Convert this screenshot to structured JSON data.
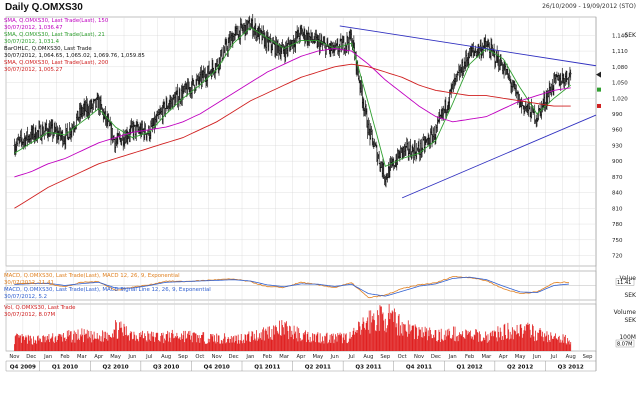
{
  "header": {
    "title": "Daily Q.OMXS30",
    "date_range": "26/10/2009 - 19/09/2012 (STO)"
  },
  "legend_price": [
    {
      "text": "SMA, Q.OMXS30, Last Trade(Last), 150",
      "color": "#c000c0"
    },
    {
      "text": "30/07/2012, 1,036.47",
      "color": "#c000c0"
    },
    {
      "text": "SMA, Q.OMXS30, Last Trade(Last), 21",
      "color": "#30a030"
    },
    {
      "text": "30/07/2012, 1,031.4",
      "color": "#30a030"
    },
    {
      "text": "BarOHLC, Q.OMXS30, Last Trade",
      "color": "#111111"
    },
    {
      "text": "30/07/2012, 1,064.65, 1,065.02, 1,069.76, 1,059.85",
      "color": "#111111"
    },
    {
      "text": "SMA, Q.OMXS30, Last Trade(Last), 200",
      "color": "#d02020"
    },
    {
      "text": "30/07/2012, 1,005.27",
      "color": "#d02020"
    }
  ],
  "legend_macd": [
    {
      "text": "MACD, Q.OMXS30, Last Trade(Last), MACD 12, 26, 9, Exponential",
      "color": "#e08020"
    },
    {
      "text": "30/07/2012, 11.41",
      "color": "#e08020"
    },
    {
      "text": "MACD, Q.OMXS30, Last Trade(Last), MACD Signal Line 12, 26, 9, Exponential",
      "color": "#3060d0"
    },
    {
      "text": "30/07/2012, 5.2",
      "color": "#3060d0"
    }
  ],
  "legend_volume": [
    {
      "text": "Vol, Q.OMXS30, Last Trade",
      "color": "#d02020"
    },
    {
      "text": "30/07/2012, 8.07M",
      "color": "#d02020"
    }
  ],
  "axis_units": {
    "price": "SEK",
    "macd_top": "Value",
    "macd_bottom": "SEK",
    "volume_top": "Volume",
    "volume_bottom": "SEK",
    "volume_tick": "100M",
    "macd_current": "11.41",
    "volume_current": "8.07M"
  },
  "colors": {
    "bars": "#111111",
    "sma21": "#30a030",
    "sma150": "#c000c0",
    "sma200": "#d02020",
    "trend": "#3030c0",
    "macd": "#e08020",
    "signal": "#3060d0",
    "volume": "#e02020",
    "grid": "#d8d8d8"
  },
  "chart_data": [
    {
      "type": "line",
      "title": "Daily Q.OMXS30",
      "yunit": "SEK",
      "ylim": [
        700,
        1175
      ],
      "yticks": [
        1140,
        1110,
        1080,
        1050,
        1020,
        990,
        960,
        930,
        900,
        870,
        840,
        810,
        780,
        750,
        720
      ],
      "month_labels": [
        "Nov",
        "Dec",
        "Jan",
        "Feb",
        "Mar",
        "Apr",
        "May",
        "Jun",
        "Jul",
        "Aug",
        "Sep",
        "Oct",
        "Nov",
        "Dec",
        "Jan",
        "Feb",
        "Mar",
        "Apr",
        "May",
        "Jun",
        "Jul",
        "Aug",
        "Sep",
        "Oct",
        "Nov",
        "Dec",
        "Jan",
        "Feb",
        "Mar",
        "Apr",
        "May",
        "Jun",
        "Jul",
        "Aug",
        "Sep"
      ],
      "quarter_labels": [
        "Q4 2009",
        "Q1 2010",
        "Q2 2010",
        "Q3 2010",
        "Q4 2010",
        "Q1 2011",
        "Q2 2011",
        "Q3 2011",
        "Q4 2011",
        "Q1 2012",
        "Q2 2012",
        "Q3 2012"
      ],
      "x_first_month_index": 0,
      "price_anchors_month_close": [
        [
          0,
          930
        ],
        [
          1,
          950
        ],
        [
          2,
          960
        ],
        [
          3,
          945
        ],
        [
          4,
          995
        ],
        [
          5,
          1010
        ],
        [
          6,
          935
        ],
        [
          7,
          960
        ],
        [
          8,
          955
        ],
        [
          9,
          1005
        ],
        [
          10,
          1030
        ],
        [
          11,
          1055
        ],
        [
          12,
          1085
        ],
        [
          13,
          1140
        ],
        [
          14,
          1160
        ],
        [
          15,
          1125
        ],
        [
          16,
          1110
        ],
        [
          17,
          1145
        ],
        [
          18,
          1125
        ],
        [
          19,
          1110
        ],
        [
          20,
          1135
        ],
        [
          21,
          960
        ],
        [
          22,
          870
        ],
        [
          23,
          920
        ],
        [
          24,
          920
        ],
        [
          25,
          955
        ],
        [
          26,
          1040
        ],
        [
          27,
          1105
        ],
        [
          28,
          1120
        ],
        [
          29,
          1080
        ],
        [
          30,
          1010
        ],
        [
          31,
          985
        ],
        [
          32,
          1050
        ],
        [
          33,
          1065
        ]
      ],
      "series": [
        {
          "name": "SMA, Q.OMXS30, Last Trade(Last), 21",
          "color": "#30a030",
          "values_by_month": [
            915,
            935,
            955,
            950,
            975,
            1000,
            965,
            945,
            955,
            990,
            1020,
            1045,
            1075,
            1125,
            1155,
            1135,
            1115,
            1130,
            1130,
            1115,
            1125,
            1010,
            890,
            905,
            915,
            940,
            1010,
            1085,
            1115,
            1095,
            1040,
            990,
            1020,
            1045
          ]
        },
        {
          "name": "SMA, Q.OMXS30, Last Trade(Last), 150",
          "color": "#c000c0",
          "values_by_month": [
            870,
            880,
            895,
            905,
            920,
            935,
            945,
            955,
            960,
            965,
            975,
            990,
            1010,
            1030,
            1050,
            1070,
            1085,
            1100,
            1110,
            1115,
            1110,
            1085,
            1055,
            1030,
            1005,
            985,
            975,
            980,
            985,
            1000,
            1015,
            1025,
            1035,
            1040
          ]
        },
        {
          "name": "SMA, Q.OMXS30, Last Trade(Last), 200",
          "color": "#d02020",
          "values_by_month": [
            810,
            830,
            850,
            865,
            880,
            895,
            905,
            915,
            925,
            935,
            945,
            960,
            975,
            995,
            1015,
            1030,
            1045,
            1060,
            1070,
            1080,
            1085,
            1080,
            1070,
            1060,
            1045,
            1035,
            1030,
            1025,
            1025,
            1020,
            1015,
            1010,
            1005,
            1005
          ]
        }
      ],
      "trendlines": [
        {
          "from": {
            "month": 19.3,
            "value": 1158
          },
          "to": {
            "month": 34.5,
            "value": 1082
          }
        },
        {
          "from": {
            "month": 23.0,
            "value": 830
          },
          "to": {
            "month": 34.5,
            "value": 988
          }
        }
      ],
      "last_close": 1065.02
    },
    {
      "type": "line",
      "title": "MACD",
      "ylim": [
        -45,
        45
      ],
      "series": [
        {
          "name": "MACD, Q.OMXS30, Last Trade(Last), MACD 12, 26, 9, Exponential",
          "values_by_month": [
            5,
            8,
            6,
            -4,
            10,
            12,
            -15,
            -5,
            2,
            14,
            12,
            15,
            18,
            20,
            12,
            -4,
            -6,
            10,
            2,
            -6,
            8,
            -38,
            -30,
            -10,
            2,
            8,
            28,
            25,
            15,
            -10,
            -25,
            -20,
            8,
            11.41
          ]
        },
        {
          "name": "MACD, Q.OMXS30, Last Trade(Last), MACD Signal Line 12, 26, 9, Exponential",
          "values_by_month": [
            3,
            6,
            7,
            0,
            6,
            10,
            -8,
            -8,
            0,
            10,
            12,
            14,
            16,
            18,
            14,
            2,
            -4,
            5,
            4,
            -3,
            4,
            -25,
            -33,
            -18,
            -2,
            5,
            22,
            26,
            18,
            -2,
            -20,
            -22,
            0,
            5.2
          ]
        }
      ],
      "last": {
        "macd": 11.41,
        "signal": 5.2
      }
    },
    {
      "type": "bar",
      "title": "Vol, Q.OMXS30, Last Trade",
      "yunit": "100M",
      "ylim": [
        0,
        150
      ],
      "level_by_month": [
        40,
        35,
        38,
        45,
        50,
        40,
        70,
        55,
        45,
        45,
        50,
        42,
        40,
        38,
        45,
        60,
        70,
        50,
        45,
        40,
        45,
        95,
        110,
        80,
        60,
        50,
        55,
        50,
        45,
        60,
        70,
        55,
        40,
        35
      ],
      "last_volume": "8.07M"
    }
  ]
}
